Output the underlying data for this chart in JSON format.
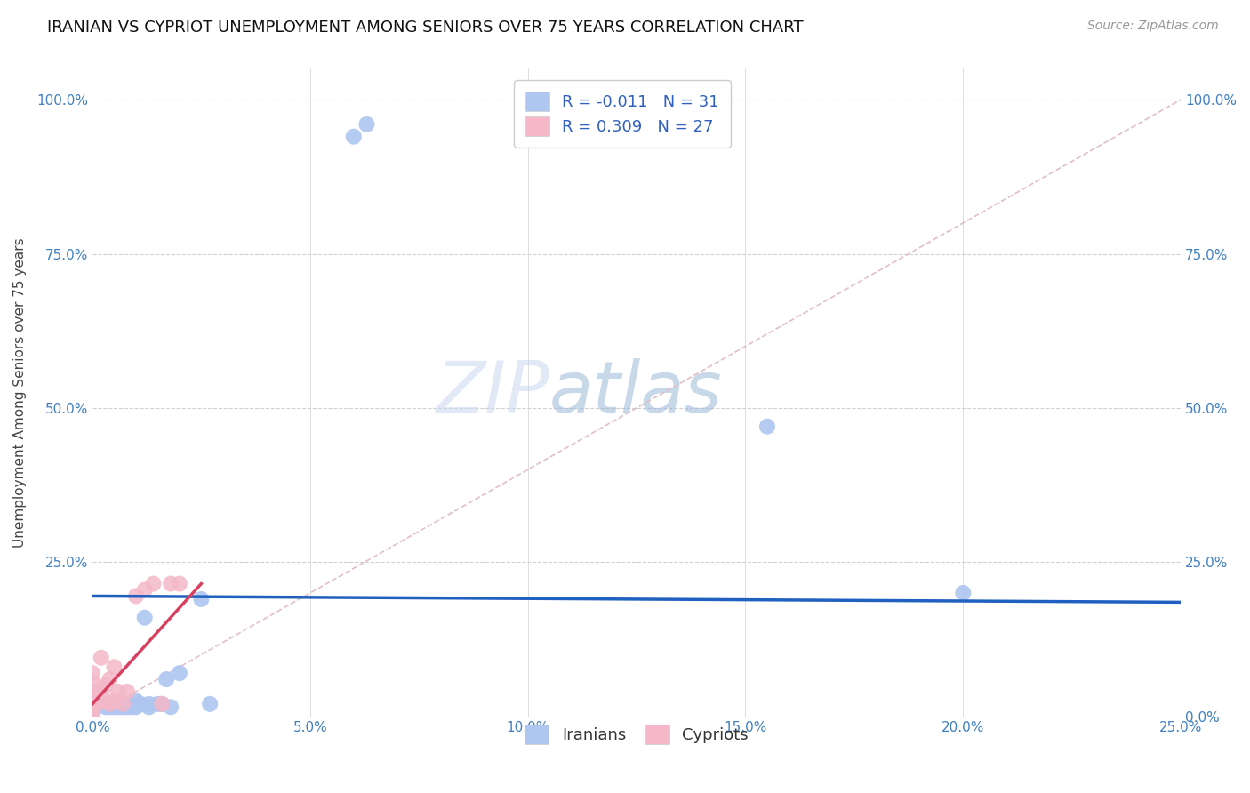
{
  "title": "IRANIAN VS CYPRIOT UNEMPLOYMENT AMONG SENIORS OVER 75 YEARS CORRELATION CHART",
  "source": "Source: ZipAtlas.com",
  "ylabel": "Unemployment Among Seniors over 75 years",
  "xlim": [
    0.0,
    0.25
  ],
  "ylim": [
    0.0,
    1.05
  ],
  "xticks": [
    0.0,
    0.05,
    0.1,
    0.15,
    0.2,
    0.25
  ],
  "yticks": [
    0.0,
    0.25,
    0.5,
    0.75,
    1.0
  ],
  "xticklabels": [
    "0.0%",
    "5.0%",
    "10.0%",
    "15.0%",
    "20.0%",
    "25.0%"
  ],
  "left_yticklabels": [
    "",
    "25.0%",
    "50.0%",
    "75.0%",
    "100.0%"
  ],
  "right_yticklabels": [
    "0.0%",
    "25.0%",
    "50.0%",
    "75.0%",
    "100.0%"
  ],
  "iranian_R": "-0.011",
  "iranian_N": "31",
  "cypriot_R": "0.309",
  "cypriot_N": "27",
  "iranian_color": "#aec6f0",
  "cypriot_color": "#f4b8c8",
  "iranian_line_color": "#2060c0",
  "cypriot_line_color": "#d84060",
  "diagonal_color": "#e0c0c8",
  "background_color": "#ffffff",
  "grid_color": "#d0d0d0",
  "iranians_x": [
    0.003,
    0.003,
    0.004,
    0.004,
    0.005,
    0.005,
    0.006,
    0.006,
    0.007,
    0.007,
    0.008,
    0.008,
    0.009,
    0.009,
    0.01,
    0.01,
    0.011,
    0.012,
    0.013,
    0.013,
    0.015,
    0.016,
    0.017,
    0.018,
    0.02,
    0.025,
    0.027,
    0.06,
    0.063,
    0.155,
    0.2
  ],
  "iranians_y": [
    0.015,
    0.02,
    0.015,
    0.02,
    0.015,
    0.02,
    0.015,
    0.02,
    0.015,
    0.02,
    0.015,
    0.02,
    0.015,
    0.02,
    0.015,
    0.025,
    0.02,
    0.16,
    0.015,
    0.02,
    0.02,
    0.02,
    0.06,
    0.015,
    0.07,
    0.19,
    0.02,
    0.94,
    0.96,
    0.47,
    0.2
  ],
  "cypriots_x": [
    0.0,
    0.0,
    0.0,
    0.0,
    0.0,
    0.0,
    0.0,
    0.0,
    0.0,
    0.001,
    0.002,
    0.002,
    0.003,
    0.003,
    0.004,
    0.004,
    0.005,
    0.005,
    0.006,
    0.007,
    0.008,
    0.01,
    0.012,
    0.014,
    0.016,
    0.018,
    0.02
  ],
  "cypriots_y": [
    0.0,
    0.005,
    0.01,
    0.015,
    0.02,
    0.03,
    0.04,
    0.055,
    0.07,
    0.02,
    0.045,
    0.095,
    0.025,
    0.05,
    0.02,
    0.06,
    0.025,
    0.08,
    0.04,
    0.02,
    0.04,
    0.195,
    0.205,
    0.215,
    0.02,
    0.215,
    0.215
  ],
  "title_fontsize": 13,
  "axis_label_fontsize": 11,
  "tick_fontsize": 11,
  "legend_fontsize": 13,
  "marker_size": 13,
  "iranian_line_y_start": 0.195,
  "iranian_line_y_end": 0.185,
  "cypriot_line_x_start": 0.0,
  "cypriot_line_y_start": 0.02,
  "cypriot_line_x_end": 0.025,
  "cypriot_line_y_end": 0.215
}
